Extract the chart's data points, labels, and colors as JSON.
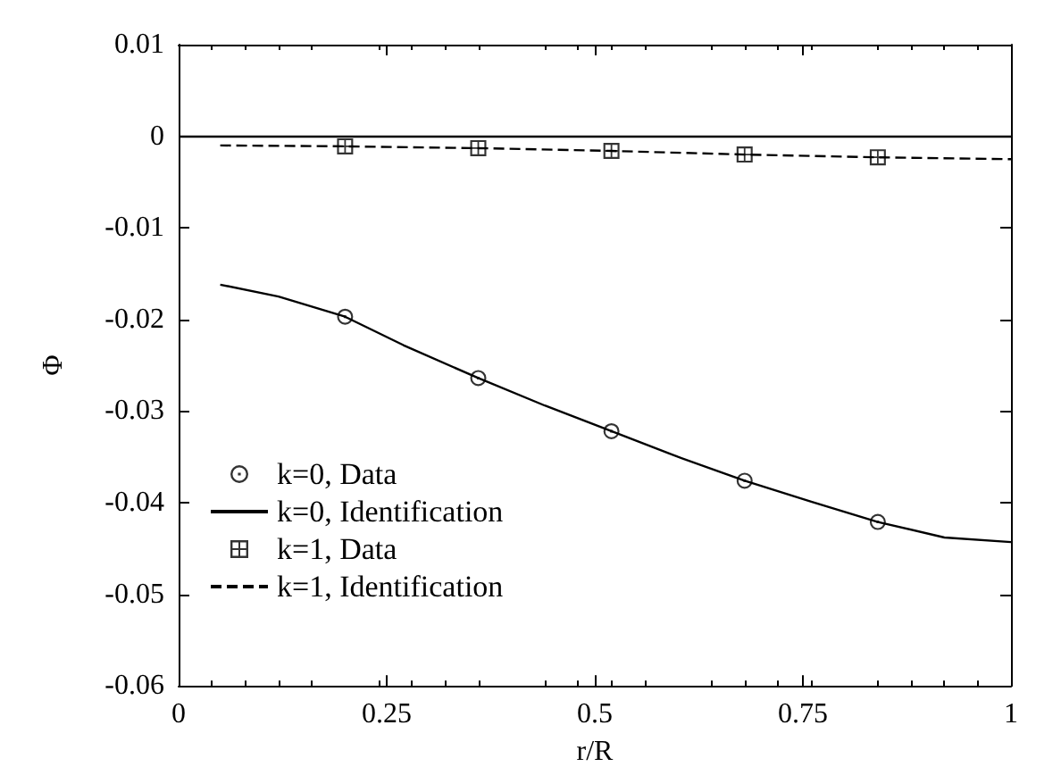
{
  "chart_data": {
    "type": "line",
    "xlabel": "r/R",
    "ylabel": "Φ",
    "xlim": [
      0,
      1
    ],
    "xticks": [
      0,
      0.25,
      0.5,
      0.75,
      1
    ],
    "ylim": [
      -0.06,
      0.01
    ],
    "yticks": [
      -0.06,
      -0.05,
      -0.04,
      -0.03,
      -0.02,
      -0.01,
      0,
      0.01
    ],
    "grid": false,
    "legend": "bottom left",
    "ref_lines": [
      {
        "axis": "y",
        "value": 0,
        "color": "#000000",
        "line_style": "solid"
      }
    ],
    "series": [
      {
        "name": "k=0, Data",
        "type": "scatter",
        "marker": "circle",
        "color": "#000000",
        "x": [
          0.2,
          0.36,
          0.52,
          0.68,
          0.84
        ],
        "values": [
          -0.0197,
          -0.0264,
          -0.0322,
          -0.0376,
          -0.0421
        ]
      },
      {
        "name": "k=0, Identification",
        "line_style": "solid",
        "marker": "none",
        "color": "#000000",
        "x": [
          0.05,
          0.12,
          0.2,
          0.27,
          0.36,
          0.44,
          0.52,
          0.6,
          0.68,
          0.76,
          0.84,
          0.92,
          1
        ],
        "values": [
          -0.0162,
          -0.0175,
          -0.0197,
          -0.0228,
          -0.0264,
          -0.0294,
          -0.0322,
          -0.035,
          -0.0376,
          -0.0399,
          -0.0421,
          -0.0438,
          -0.0443
        ]
      },
      {
        "name": "k=1, Data",
        "type": "scatter",
        "marker": "square",
        "color": "#000000",
        "x": [
          0.2,
          0.36,
          0.52,
          0.68,
          0.84
        ],
        "values": [
          -0.0011,
          -0.0013,
          -0.0016,
          -0.002,
          -0.0023
        ]
      },
      {
        "name": "k=1, Identification",
        "line_style": "dashed",
        "marker": "none",
        "color": "#000000",
        "x": [
          0.05,
          0.2,
          0.36,
          0.52,
          0.68,
          0.84,
          1
        ],
        "values": [
          -0.001,
          -0.0011,
          -0.0013,
          -0.0016,
          -0.002,
          -0.0023,
          -0.0025
        ]
      }
    ]
  }
}
